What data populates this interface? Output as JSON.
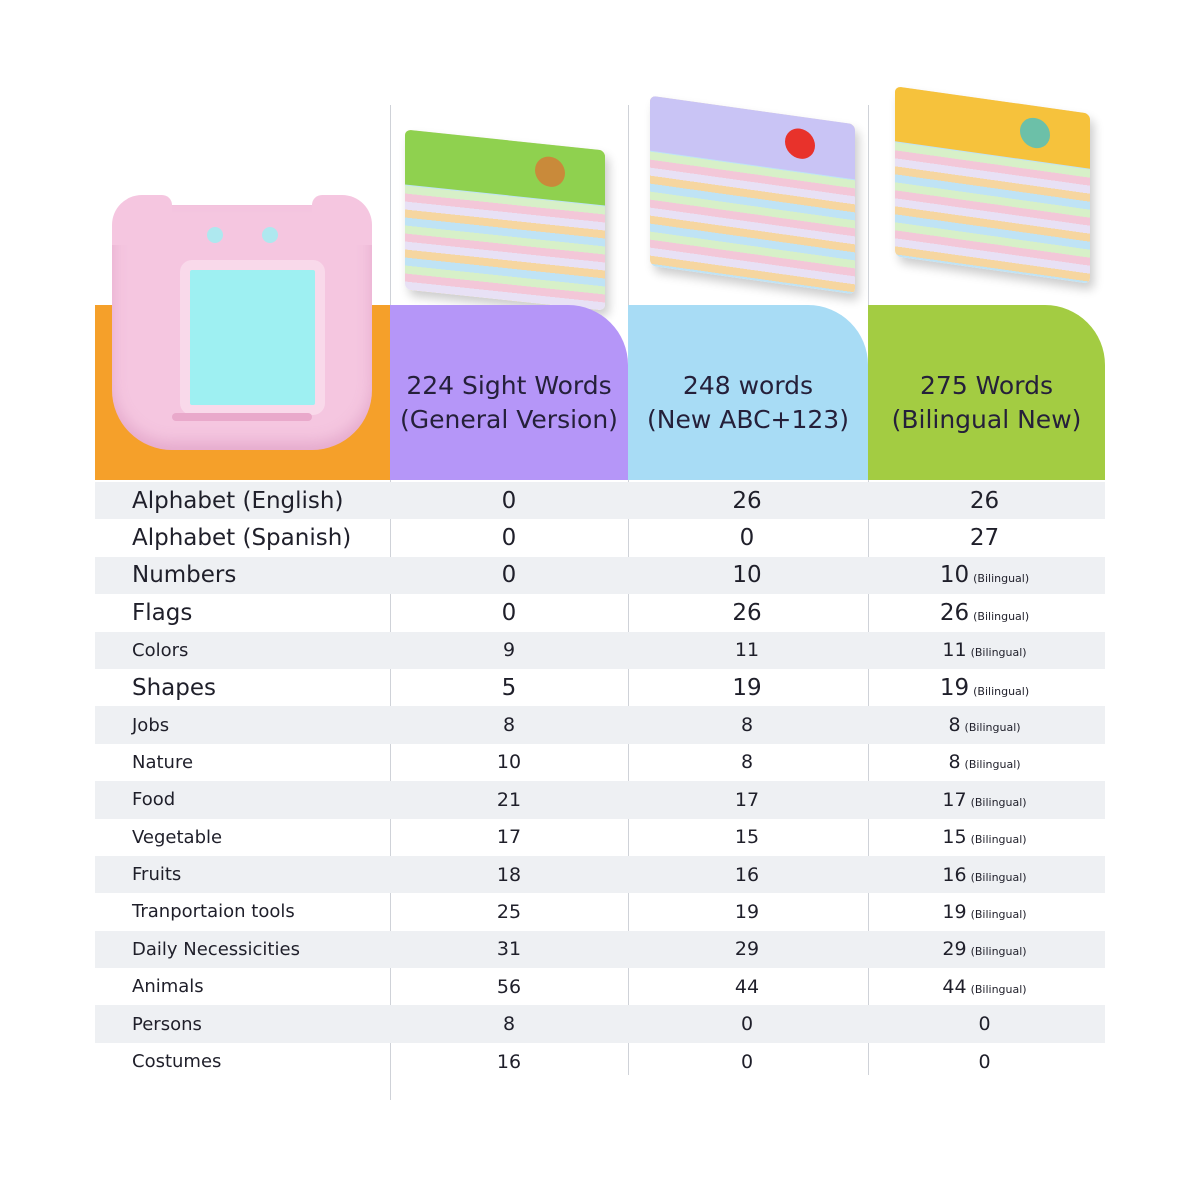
{
  "columns": [
    {
      "title_line1": "224 Sight Words",
      "title_line2": "(General Version)",
      "color": "#b596f8"
    },
    {
      "title_line1": "248 words",
      "title_line2": "(New ABC+123)",
      "color": "#a8dcf5"
    },
    {
      "title_line1": "275 Words",
      "title_line2": "(Bilingual New)",
      "color": "#a3cc42"
    }
  ],
  "rows": [
    {
      "label": "Alphabet (English)",
      "v1": "0",
      "v2": "26",
      "v3": "26",
      "note": ""
    },
    {
      "label": "Alphabet (Spanish)",
      "v1": "0",
      "v2": "0",
      "v3": "27",
      "note": ""
    },
    {
      "label": "Numbers",
      "v1": "0",
      "v2": "10",
      "v3": "10",
      "note": "(Bilingual)"
    },
    {
      "label": "Flags",
      "v1": "0",
      "v2": "26",
      "v3": "26",
      "note": "(Bilingual)"
    },
    {
      "label": "Colors",
      "v1": "9",
      "v2": "11",
      "v3": "11",
      "note": "(Bilingual)"
    },
    {
      "label": "Shapes",
      "v1": "5",
      "v2": "19",
      "v3": "19",
      "note": "(Bilingual)"
    },
    {
      "label": "Jobs",
      "v1": "8",
      "v2": "8",
      "v3": "8",
      "note": "(Bilingual)"
    },
    {
      "label": "Nature",
      "v1": "10",
      "v2": "8",
      "v3": "8",
      "note": "(Bilingual)"
    },
    {
      "label": "Food",
      "v1": "21",
      "v2": "17",
      "v3": "17",
      "note": "(Bilingual)"
    },
    {
      "label": "Vegetable",
      "v1": "17",
      "v2": "15",
      "v3": "15",
      "note": "(Bilingual)"
    },
    {
      "label": "Fruits",
      "v1": "18",
      "v2": "16",
      "v3": "16",
      "note": "(Bilingual)"
    },
    {
      "label": "Tranportaion tools",
      "v1": "25",
      "v2": "19",
      "v3": "19",
      "note": "(Bilingual)"
    },
    {
      "label": "Daily Necessicities",
      "v1": "31",
      "v2": "29",
      "v3": "29",
      "note": "(Bilingual)"
    },
    {
      "label": "Animals",
      "v1": "56",
      "v2": "44",
      "v3": "44",
      "note": "(Bilingual)"
    },
    {
      "label": "Persons",
      "v1": "8",
      "v2": "0",
      "v3": "0",
      "note": ""
    },
    {
      "label": "Costumes",
      "v1": "16",
      "v2": "0",
      "v3": "0",
      "note": ""
    }
  ]
}
